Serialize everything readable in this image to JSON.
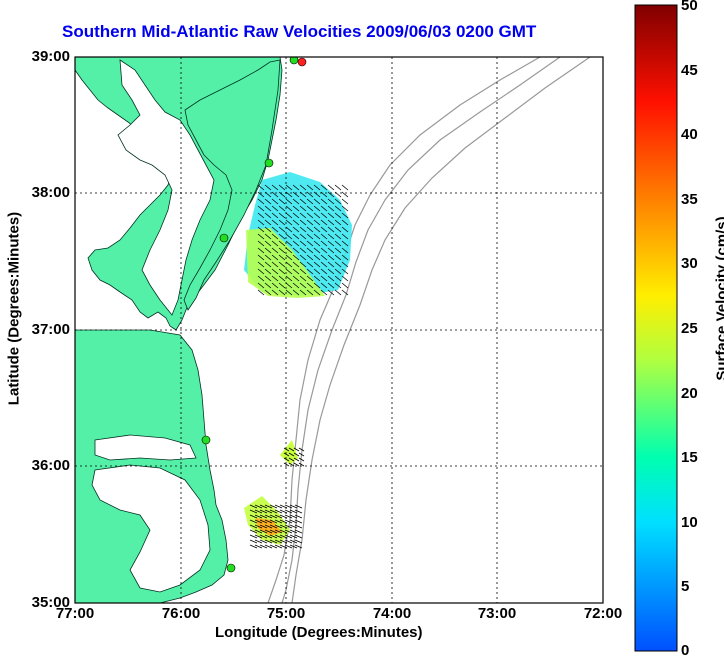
{
  "title": "Southern Mid-Atlantic Raw Velocities 2009/06/03 0200 GMT",
  "xlabel": "Longitude (Degrees:Minutes)",
  "ylabel": "Latitude (Degrees:Minutes)",
  "colorbar_label": "Surface Velocity (cm/s)",
  "x_ticks": [
    "77:00",
    "76:00",
    "75:00",
    "74:00",
    "73:00",
    "72:00"
  ],
  "y_ticks": [
    "39:00",
    "38:00",
    "37:00",
    "36:00",
    "35:00"
  ],
  "colorbar_ticks": [
    "50",
    "45",
    "40",
    "35",
    "30",
    "25",
    "20",
    "15",
    "10",
    "5",
    "0"
  ],
  "colors": {
    "land": "#55f0a8",
    "title": "#0000ee",
    "bathymetry": "#999999",
    "site_marker": "#22dd22",
    "site_marker_alt": "#ff2020"
  },
  "map": {
    "lon_range": [
      -77,
      -72
    ],
    "lat_range": [
      35,
      39
    ],
    "grid": "dotted"
  }
}
